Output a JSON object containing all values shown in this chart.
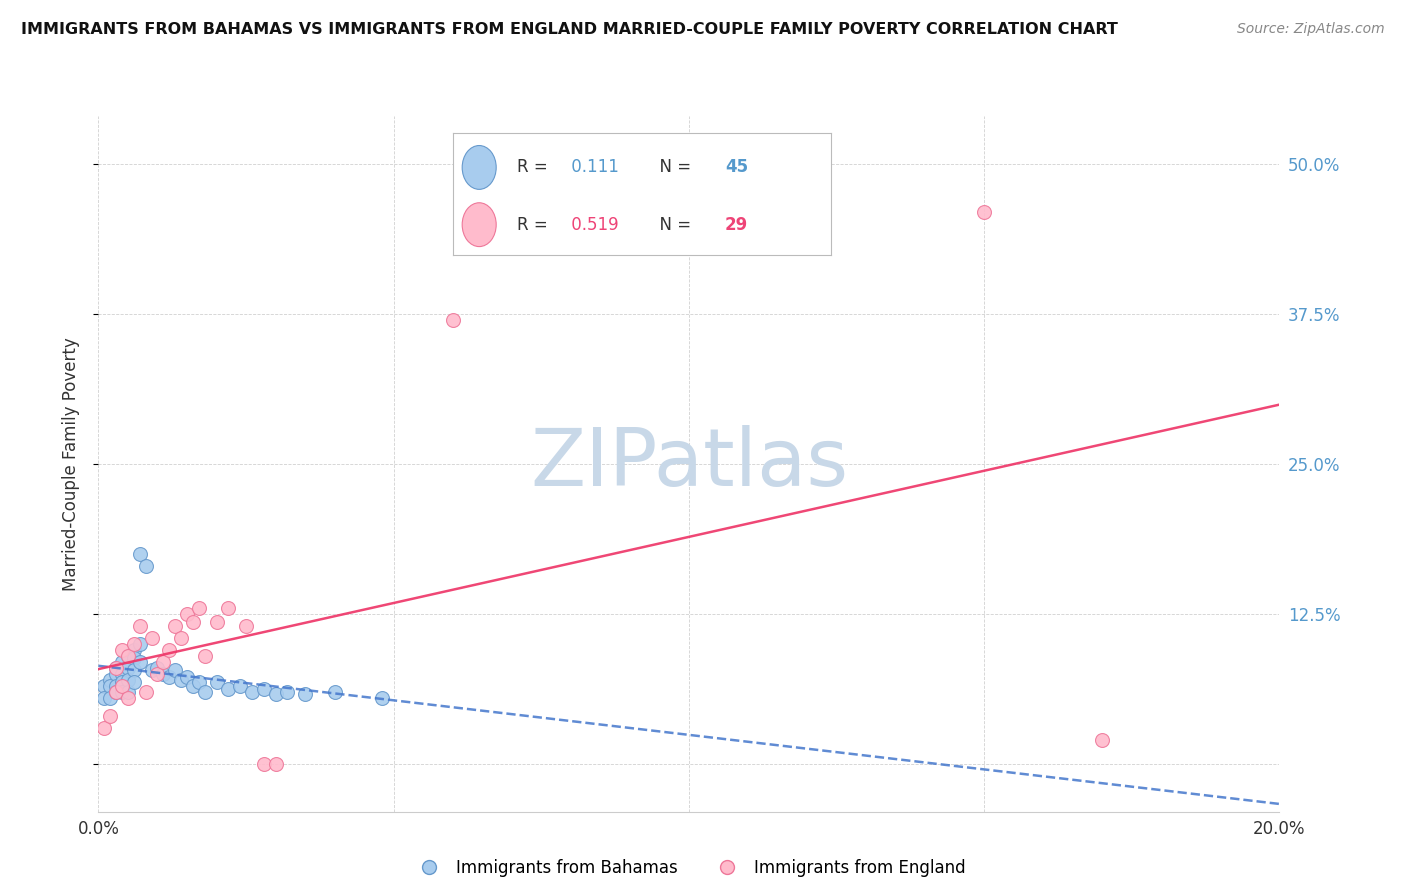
{
  "title": "IMMIGRANTS FROM BAHAMAS VS IMMIGRANTS FROM ENGLAND MARRIED-COUPLE FAMILY POVERTY CORRELATION CHART",
  "source": "Source: ZipAtlas.com",
  "ylabel": "Married-Couple Family Poverty",
  "xlim": [
    0.0,
    0.2
  ],
  "ylim": [
    -0.04,
    0.54
  ],
  "yticks": [
    0.0,
    0.125,
    0.25,
    0.375,
    0.5
  ],
  "ytick_labels": [
    "",
    "12.5%",
    "25.0%",
    "37.5%",
    "50.0%"
  ],
  "xticks": [
    0.0,
    0.05,
    0.1,
    0.15,
    0.2
  ],
  "xtick_labels": [
    "0.0%",
    "",
    "",
    "",
    "20.0%"
  ],
  "legend_r_bahamas": "0.111",
  "legend_n_bahamas": "45",
  "legend_r_england": "0.519",
  "legend_n_england": "29",
  "watermark": "ZIPatlas",
  "watermark_color": "#c8d8e8",
  "bahamas_color": "#a8ccee",
  "bahamas_edge": "#6699cc",
  "england_color": "#ffbbcc",
  "england_edge": "#ee7799",
  "trend_bahamas_color": "#4477cc",
  "trend_england_color": "#ee3366",
  "bahamas_x": [
    0.001,
    0.001,
    0.002,
    0.002,
    0.002,
    0.003,
    0.003,
    0.003,
    0.003,
    0.004,
    0.004,
    0.004,
    0.004,
    0.005,
    0.005,
    0.005,
    0.005,
    0.006,
    0.006,
    0.006,
    0.006,
    0.007,
    0.007,
    0.007,
    0.008,
    0.009,
    0.01,
    0.011,
    0.012,
    0.013,
    0.014,
    0.015,
    0.016,
    0.017,
    0.018,
    0.02,
    0.022,
    0.024,
    0.026,
    0.028,
    0.03,
    0.032,
    0.035,
    0.04,
    0.048
  ],
  "bahamas_y": [
    0.065,
    0.055,
    0.07,
    0.065,
    0.055,
    0.08,
    0.075,
    0.065,
    0.06,
    0.085,
    0.075,
    0.068,
    0.06,
    0.09,
    0.08,
    0.07,
    0.06,
    0.095,
    0.088,
    0.078,
    0.068,
    0.1,
    0.085,
    0.175,
    0.165,
    0.078,
    0.08,
    0.075,
    0.072,
    0.078,
    0.07,
    0.072,
    0.065,
    0.068,
    0.06,
    0.068,
    0.062,
    0.065,
    0.06,
    0.062,
    0.058,
    0.06,
    0.058,
    0.06,
    0.055
  ],
  "england_x": [
    0.001,
    0.002,
    0.003,
    0.003,
    0.004,
    0.004,
    0.005,
    0.005,
    0.006,
    0.007,
    0.008,
    0.009,
    0.01,
    0.011,
    0.012,
    0.013,
    0.014,
    0.015,
    0.016,
    0.017,
    0.018,
    0.02,
    0.022,
    0.025,
    0.028,
    0.03,
    0.06,
    0.15,
    0.17
  ],
  "england_y": [
    0.03,
    0.04,
    0.06,
    0.08,
    0.065,
    0.095,
    0.055,
    0.09,
    0.1,
    0.115,
    0.06,
    0.105,
    0.075,
    0.085,
    0.095,
    0.115,
    0.105,
    0.125,
    0.118,
    0.13,
    0.09,
    0.118,
    0.13,
    0.115,
    0.0,
    0.0,
    0.37,
    0.46,
    0.02
  ]
}
